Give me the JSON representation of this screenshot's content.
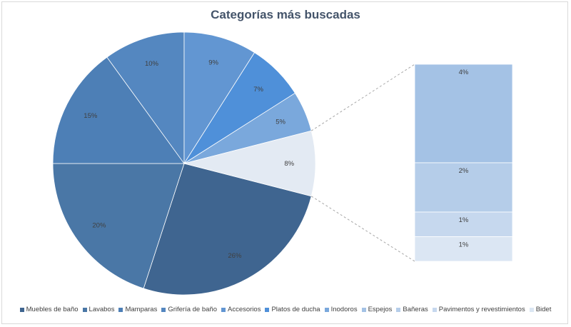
{
  "chart_data": {
    "type": "pie",
    "subtype": "bar-of-pie",
    "title": "Categorías  más buscadas",
    "categories": [
      "Muebles de baño",
      "Lavabos",
      "Mamparas",
      "Grifería de baño",
      "Accesorios",
      "Platos de ducha",
      "Inodoros",
      "Espejos",
      "Bañeras",
      "Pavimentos y revestimientos",
      "Bidet"
    ],
    "values": [
      26,
      20,
      15,
      10,
      9,
      7,
      5,
      4,
      2,
      1,
      1
    ],
    "labels": [
      "26%",
      "20%",
      "15%",
      "10%",
      "9%",
      "7%",
      "5%",
      "4%",
      "2%",
      "1%",
      "1%"
    ],
    "other_label": "8%",
    "other_value": 8,
    "secondary_categories": [
      "Espejos",
      "Bañeras",
      "Pavimentos y revestimientos",
      "Bidet"
    ],
    "colors": [
      "#3f6590",
      "#4a77a6",
      "#4d7fb6",
      "#5487c0",
      "#6296d2",
      "#4f90d9",
      "#7aa8dc",
      "#a4c2e5",
      "#b5cde9",
      "#c6d8ee",
      "#dbe6f3"
    ],
    "other_color": "#e3eaf3",
    "legend_position": "bottom"
  }
}
